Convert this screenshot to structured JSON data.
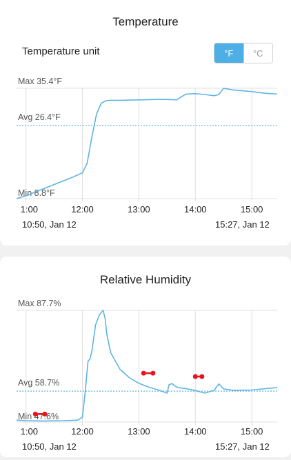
{
  "temperature": {
    "title": "Temperature",
    "unit_label": "Temperature unit",
    "unit_options": [
      "°F",
      "°C"
    ],
    "unit_selected": "°F",
    "range_start": "10:50,  Jan 12",
    "range_end": "15:27,  Jan 12"
  },
  "humidity": {
    "title": "Relative Humidity",
    "range_start": "10:50,  Jan 12",
    "range_end": "15:27,  Jan 12"
  },
  "colors": {
    "line": "#5fb3e2",
    "accent": "#4eaee6",
    "grid": "#e0e0e0",
    "marker": "#e8141d"
  },
  "chart_data": [
    {
      "type": "line",
      "title": "Temperature",
      "x": [
        "10:50",
        "11:00",
        "11:10",
        "11:20",
        "11:30",
        "11:40",
        "11:50",
        "12:00",
        "12:05",
        "12:10",
        "12:15",
        "12:20",
        "12:25",
        "12:30",
        "12:40",
        "13:00",
        "13:20",
        "13:30",
        "13:40",
        "13:50",
        "14:00",
        "14:10",
        "14:20",
        "14:25",
        "14:30",
        "14:40",
        "14:50",
        "15:00",
        "15:10",
        "15:20",
        "15:27"
      ],
      "y": [
        8.8,
        9.5,
        10.4,
        11.3,
        12.2,
        13.1,
        14.0,
        15.0,
        17.3,
        23.6,
        29.2,
        31.8,
        32.4,
        32.5,
        32.5,
        32.6,
        32.7,
        32.7,
        32.6,
        34.0,
        34.1,
        33.9,
        33.6,
        33.9,
        35.4,
        35.0,
        34.8,
        34.6,
        34.3,
        34.1,
        34.0
      ],
      "x_ticks": [
        "11:00",
        "12:00",
        "13:00",
        "14:00",
        "15:00"
      ],
      "x_tick_first_display": "1:00",
      "max_label": "Max 35.4°F",
      "avg_label": "Avg 26.4°F",
      "min_label": "Min 8.8°F",
      "max": 35.4,
      "avg": 26.4,
      "min": 8.8,
      "ylim": [
        8.8,
        35.4
      ],
      "xlim": [
        "10:50",
        "15:27"
      ],
      "grid": true
    },
    {
      "type": "line",
      "title": "Relative Humidity",
      "x": [
        "10:50",
        "11:00",
        "11:20",
        "11:40",
        "11:55",
        "12:00",
        "12:03",
        "12:06",
        "12:08",
        "12:10",
        "12:14",
        "12:18",
        "12:22",
        "12:24",
        "12:26",
        "12:30",
        "12:40",
        "12:50",
        "13:00",
        "13:10",
        "13:20",
        "13:30",
        "13:32",
        "13:35",
        "13:40",
        "13:45",
        "13:50",
        "14:00",
        "14:10",
        "14:15",
        "14:20",
        "14:25",
        "14:30",
        "14:40",
        "15:00",
        "15:15",
        "15:27"
      ],
      "y": [
        48.3,
        48.1,
        48.0,
        48.1,
        48.3,
        49.3,
        58.5,
        69.5,
        70.2,
        73.0,
        82.5,
        86.1,
        87.7,
        85.0,
        79.0,
        72.5,
        66.5,
        63.5,
        61.5,
        60.2,
        59.2,
        58.0,
        61.0,
        61.4,
        60.2,
        59.8,
        59.6,
        58.9,
        58.0,
        58.5,
        59.0,
        61.3,
        59.5,
        59.0,
        59.1,
        59.6,
        60.0
      ],
      "x_ticks": [
        "11:00",
        "12:00",
        "13:00",
        "14:00",
        "15:00"
      ],
      "x_tick_first_display": "1:00",
      "max_label": "Max 87.7%",
      "avg_label": "Avg 58.7%",
      "min_label": "Min 47.6%",
      "max": 87.7,
      "avg": 58.7,
      "min": 47.6,
      "ylim": [
        47.6,
        87.7
      ],
      "xlim": [
        "10:50",
        "15:27"
      ],
      "grid": true,
      "gap_markers": [
        [
          "11:10",
          "11:20"
        ],
        [
          "13:05",
          "13:15"
        ],
        [
          "14:00",
          "14:07"
        ]
      ]
    }
  ]
}
